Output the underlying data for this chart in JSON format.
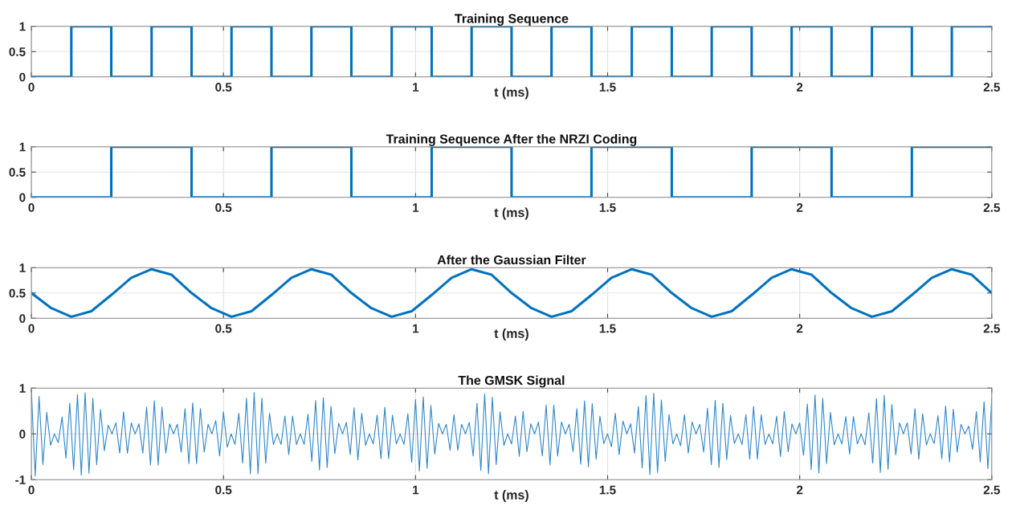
{
  "chart_data": [
    {
      "type": "step",
      "title": "Training Sequence",
      "xlabel": "t (ms)",
      "xlim": [
        0,
        2.5
      ],
      "xticks": [
        0,
        0.5,
        1,
        1.5,
        2,
        2.5
      ],
      "ylim": [
        0,
        1
      ],
      "yticks": [
        0,
        0.5,
        1
      ],
      "grid": true,
      "x": [
        0,
        0.104,
        0.208,
        0.313,
        0.417,
        0.521,
        0.625,
        0.729,
        0.833,
        0.938,
        1.042,
        1.146,
        1.25,
        1.354,
        1.458,
        1.563,
        1.667,
        1.771,
        1.875,
        1.979,
        2.083,
        2.188,
        2.292,
        2.396,
        2.5
      ],
      "series": [
        {
          "color": "#0072bd",
          "values": [
            0,
            1,
            0,
            1,
            0,
            1,
            0,
            1,
            0,
            1,
            0,
            1,
            0,
            1,
            0,
            1,
            0,
            1,
            0,
            1,
            0,
            1,
            0,
            1,
            1
          ]
        }
      ]
    },
    {
      "type": "step",
      "title": "Training Sequence After the NRZI Coding",
      "xlabel": "t (ms)",
      "xlim": [
        0,
        2.5
      ],
      "xticks": [
        0,
        0.5,
        1,
        1.5,
        2,
        2.5
      ],
      "ylim": [
        0,
        1
      ],
      "yticks": [
        0,
        0.5,
        1
      ],
      "grid": true,
      "x": [
        0,
        0.104,
        0.208,
        0.313,
        0.417,
        0.521,
        0.625,
        0.729,
        0.833,
        0.938,
        1.042,
        1.146,
        1.25,
        1.354,
        1.458,
        1.563,
        1.667,
        1.771,
        1.875,
        1.979,
        2.083,
        2.188,
        2.292,
        2.396,
        2.5
      ],
      "series": [
        {
          "color": "#0072bd",
          "values": [
            0,
            0,
            1,
            1,
            0,
            0,
            1,
            1,
            0,
            0,
            1,
            1,
            0,
            0,
            1,
            1,
            0,
            0,
            1,
            1,
            0,
            0,
            1,
            1,
            1
          ]
        }
      ]
    },
    {
      "type": "line",
      "title": "After the Gaussian Filter",
      "xlabel": "t (ms)",
      "xlim": [
        0,
        2.5
      ],
      "xticks": [
        0,
        0.5,
        1,
        1.5,
        2,
        2.5
      ],
      "ylim": [
        0,
        1
      ],
      "yticks": [
        0,
        0.5,
        1
      ],
      "grid": true,
      "x": [
        0,
        0.052,
        0.104,
        0.156,
        0.208,
        0.26,
        0.313,
        0.365,
        0.417,
        0.469,
        0.521,
        0.573,
        0.625,
        0.677,
        0.729,
        0.781,
        0.833,
        0.885,
        0.938,
        0.99,
        1.042,
        1.094,
        1.146,
        1.198,
        1.25,
        1.302,
        1.354,
        1.406,
        1.458,
        1.51,
        1.563,
        1.615,
        1.667,
        1.719,
        1.771,
        1.823,
        1.875,
        1.927,
        1.979,
        2.031,
        2.083,
        2.135,
        2.188,
        2.24,
        2.292,
        2.344,
        2.396,
        2.448,
        2.5
      ],
      "series": [
        {
          "color": "#0072bd",
          "values": [
            0.5,
            0.2,
            0.03,
            0.14,
            0.46,
            0.8,
            0.97,
            0.86,
            0.5,
            0.2,
            0.03,
            0.14,
            0.46,
            0.8,
            0.97,
            0.86,
            0.5,
            0.2,
            0.03,
            0.14,
            0.46,
            0.8,
            0.97,
            0.86,
            0.5,
            0.2,
            0.03,
            0.14,
            0.46,
            0.8,
            0.97,
            0.86,
            0.5,
            0.2,
            0.03,
            0.14,
            0.46,
            0.8,
            0.97,
            0.86,
            0.5,
            0.2,
            0.03,
            0.14,
            0.46,
            0.8,
            0.97,
            0.86,
            0.5
          ]
        }
      ]
    },
    {
      "type": "line",
      "title": "The GMSK Signal",
      "xlabel": "t (ms)",
      "xlim": [
        0,
        2.5
      ],
      "xticks": [
        0,
        0.5,
        1,
        1.5,
        2,
        2.5
      ],
      "ylim": [
        -1,
        1
      ],
      "yticks": [
        -1,
        0,
        1
      ],
      "grid": true,
      "x": [
        0,
        0.01,
        0.02,
        0.03,
        0.04,
        0.05,
        0.06,
        0.07,
        0.08,
        0.09,
        0.1,
        0.11,
        0.12,
        0.13,
        0.14,
        0.15,
        0.16,
        0.17,
        0.18,
        0.19,
        0.2,
        0.21,
        0.22,
        0.23,
        0.24,
        0.25,
        0.26,
        0.27,
        0.28,
        0.29,
        0.3,
        0.31,
        0.32,
        0.33,
        0.34,
        0.35,
        0.36,
        0.37,
        0.38,
        0.39,
        0.4,
        0.41,
        0.42,
        0.43,
        0.44,
        0.45,
        0.46,
        0.47,
        0.48,
        0.49,
        0.5,
        0.51,
        0.52,
        0.53,
        0.54,
        0.55,
        0.56,
        0.57,
        0.58,
        0.59,
        0.6,
        0.61,
        0.62,
        0.63,
        0.64,
        0.65,
        0.66,
        0.67,
        0.68,
        0.69,
        0.7,
        0.71,
        0.72,
        0.73,
        0.74,
        0.75,
        0.76,
        0.77,
        0.78,
        0.79,
        0.8,
        0.81,
        0.82,
        0.83,
        0.84,
        0.85,
        0.86,
        0.87,
        0.88,
        0.89,
        0.9,
        0.91,
        0.92,
        0.93,
        0.94,
        0.95,
        0.96,
        0.97,
        0.98,
        0.99,
        1,
        1.01,
        1.02,
        1.03,
        1.04,
        1.05,
        1.06,
        1.07,
        1.08,
        1.09,
        1.1,
        1.11,
        1.12,
        1.13,
        1.14,
        1.15,
        1.16,
        1.17,
        1.18,
        1.19,
        1.2,
        1.21,
        1.22,
        1.23,
        1.24,
        1.25,
        1.26,
        1.27,
        1.28,
        1.29,
        1.3,
        1.31,
        1.32,
        1.33,
        1.34,
        1.35,
        1.36,
        1.37,
        1.38,
        1.39,
        1.4,
        1.41,
        1.42,
        1.43,
        1.44,
        1.45,
        1.46,
        1.47,
        1.48,
        1.49,
        1.5,
        1.51,
        1.52,
        1.53,
        1.54,
        1.55,
        1.56,
        1.57,
        1.58,
        1.59,
        1.6,
        1.61,
        1.62,
        1.63,
        1.64,
        1.65,
        1.66,
        1.67,
        1.68,
        1.69,
        1.7,
        1.71,
        1.72,
        1.73,
        1.74,
        1.75,
        1.76,
        1.77,
        1.78,
        1.79,
        1.8,
        1.81,
        1.82,
        1.83,
        1.84,
        1.85,
        1.86,
        1.87,
        1.88,
        1.89,
        1.9,
        1.91,
        1.92,
        1.93,
        1.94,
        1.95,
        1.96,
        1.97,
        1.98,
        1.99,
        2,
        2.01,
        2.02,
        2.03,
        2.04,
        2.05,
        2.06,
        2.07,
        2.08,
        2.09,
        2.1,
        2.11,
        2.12,
        2.13,
        2.14,
        2.15,
        2.16,
        2.17,
        2.18,
        2.19,
        2.2,
        2.21,
        2.22,
        2.23,
        2.24,
        2.25,
        2.26,
        2.27,
        2.28,
        2.29,
        2.3,
        2.31,
        2.32,
        2.33,
        2.34,
        2.35,
        2.36,
        2.37,
        2.38,
        2.39,
        2.4,
        2.41,
        2.42,
        2.43,
        2.44,
        2.45,
        2.46,
        2.47,
        2.48,
        2.49,
        2.5
      ],
      "series": [
        {
          "color": "#2f87c8",
          "values": [
            0.95,
            -0.92,
            0.82,
            -0.67,
            0.47,
            -0.25,
            0,
            -0.19,
            0.37,
            -0.53,
            0.67,
            -0.78,
            0.86,
            -0.9,
            0.9,
            -0.86,
            0.78,
            -0.67,
            0.53,
            -0.37,
            0.19,
            0,
            0.24,
            -0.42,
            0.48,
            -0.42,
            0.24,
            0,
            0.22,
            -0.42,
            0.58,
            -0.68,
            0.72,
            -0.68,
            0.58,
            -0.42,
            0.22,
            0,
            0.21,
            -0.4,
            0.55,
            -0.65,
            0.68,
            -0.65,
            0.55,
            -0.4,
            0.21,
            0,
            0.29,
            -0.48,
            0.48,
            -0.29,
            0,
            -0.23,
            0.45,
            -0.64,
            0.78,
            -0.87,
            0.9,
            -0.87,
            0.78,
            -0.64,
            0.45,
            -0.23,
            0,
            -0.23,
            0.39,
            -0.45,
            0.39,
            -0.23,
            0,
            -0.23,
            0.43,
            -0.6,
            0.73,
            -0.79,
            0.79,
            -0.73,
            0.6,
            -0.43,
            0.23,
            0,
            0.25,
            -0.45,
            0.57,
            -0.57,
            0.45,
            -0.25,
            0,
            -0.22,
            0.41,
            -0.54,
            0.58,
            -0.54,
            0.41,
            -0.22,
            0,
            -0.23,
            0.44,
            -0.62,
            0.75,
            -0.81,
            0.81,
            -0.75,
            0.62,
            -0.44,
            0.23,
            0,
            0.21,
            -0.36,
            0.42,
            -0.36,
            0.21,
            0,
            0.25,
            -0.48,
            0.67,
            -0.8,
            0.87,
            -0.87,
            0.8,
            -0.67,
            0.48,
            -0.25,
            0,
            -0.22,
            0.39,
            -0.49,
            0.49,
            -0.39,
            0.22,
            0,
            0.26,
            -0.48,
            0.63,
            -0.68,
            0.63,
            -0.48,
            0.26,
            0,
            0.21,
            -0.39,
            0.55,
            -0.66,
            0.72,
            -0.72,
            0.66,
            -0.55,
            0.39,
            -0.21,
            0,
            -0.28,
            0.45,
            -0.45,
            0.28,
            0,
            0.22,
            -0.42,
            0.6,
            -0.74,
            0.84,
            -0.89,
            0.89,
            -0.84,
            0.74,
            -0.6,
            0.42,
            -0.22,
            0,
            -0.26,
            0.42,
            -0.42,
            0.26,
            0,
            0.21,
            -0.4,
            0.56,
            -0.67,
            0.73,
            -0.73,
            0.67,
            -0.56,
            0.4,
            -0.21,
            0,
            -0.23,
            0.42,
            -0.55,
            0.6,
            -0.55,
            0.42,
            -0.23,
            0,
            -0.22,
            0.39,
            -0.49,
            0.49,
            -0.39,
            0.22,
            0,
            0.24,
            -0.47,
            0.65,
            -0.78,
            0.85,
            -0.85,
            0.78,
            -0.65,
            0.47,
            -0.24,
            0,
            -0.22,
            0.38,
            -0.44,
            0.38,
            -0.22,
            0,
            -0.24,
            0.46,
            -0.64,
            0.77,
            -0.84,
            0.84,
            -0.77,
            0.64,
            -0.46,
            0.24,
            0,
            0.24,
            -0.44,
            0.55,
            -0.55,
            0.44,
            -0.24,
            0,
            -0.21,
            0.4,
            -0.54,
            0.61,
            -0.61,
            0.54,
            -0.4,
            0.21,
            0,
            0.17,
            -0.34,
            0.49,
            -0.61,
            0.7,
            -0.76,
            0.78
          ]
        }
      ]
    }
  ]
}
